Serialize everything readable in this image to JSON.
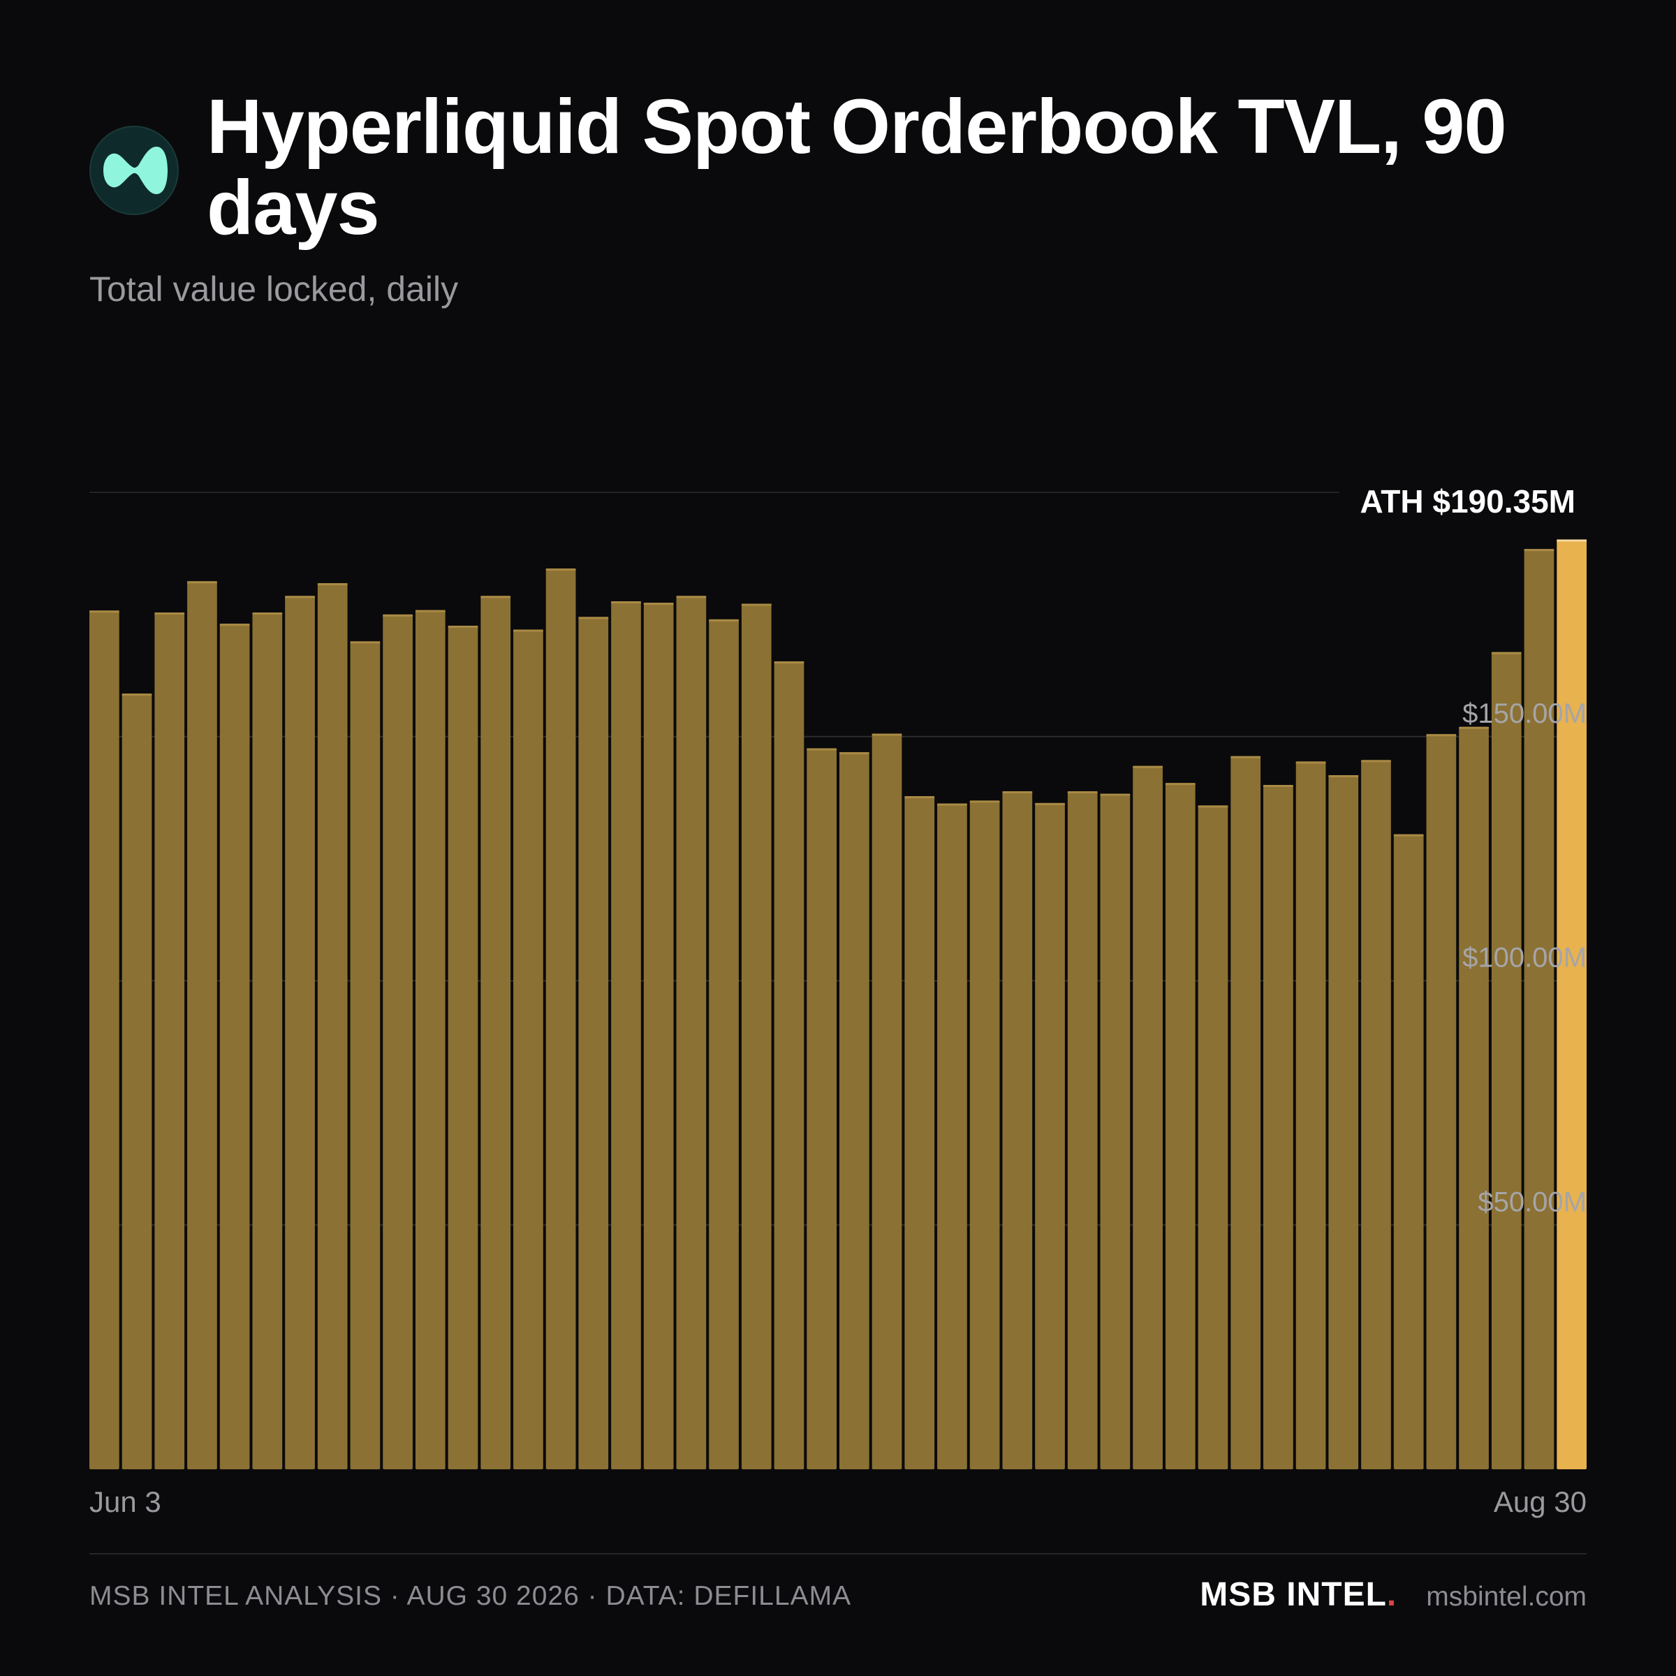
{
  "header": {
    "title": "Hyperliquid Spot Orderbook TVL, 90 days",
    "subtitle": "Total value locked, daily",
    "logo_icon": "hyperliquid-logo-icon"
  },
  "colors": {
    "background": "#0a0a0c",
    "bar": "#8b7133",
    "bar_highlight": "#e8b24e",
    "logo_bg": "#0f2a2a",
    "logo_mark": "#8ff5dc",
    "grid": "#2a2a2e",
    "brand_dot": "#d9483b"
  },
  "chart_data": {
    "type": "bar",
    "x_start_label": "Jun 3",
    "x_end_label": "Aug 30",
    "values": [
      175.8,
      158.8,
      175.4,
      181.8,
      173.1,
      175.4,
      178.8,
      181.4,
      169.5,
      175.0,
      175.9,
      172.7,
      178.8,
      171.9,
      184.4,
      174.5,
      177.7,
      177.4,
      178.8,
      174.0,
      177.2,
      165.4,
      147.6,
      146.8,
      150.6,
      137.8,
      136.3,
      136.9,
      138.8,
      136.4,
      138.8,
      138.3,
      144.0,
      140.5,
      135.9,
      146.0,
      140.1,
      144.9,
      142.1,
      145.2,
      130.0,
      150.5,
      152.0,
      167.3,
      188.4,
      190.35
    ],
    "ylim": [
      0,
      200
    ],
    "y_ticks": [
      {
        "value": 50,
        "label": "$50.00M"
      },
      {
        "value": 100,
        "label": "$100.00M"
      },
      {
        "value": 150,
        "label": "$150.00M"
      }
    ],
    "ath": {
      "value": 200,
      "label": "ATH $190.35M"
    },
    "highlight_last": true,
    "grid": true,
    "legend": "none"
  },
  "footer": {
    "source": "MSB INTEL ANALYSIS · AUG 30 2026 · DATA: DEFILLAMA",
    "brand": "MSB INTEL",
    "brand_dot": ".",
    "site": "msbintel.com"
  }
}
